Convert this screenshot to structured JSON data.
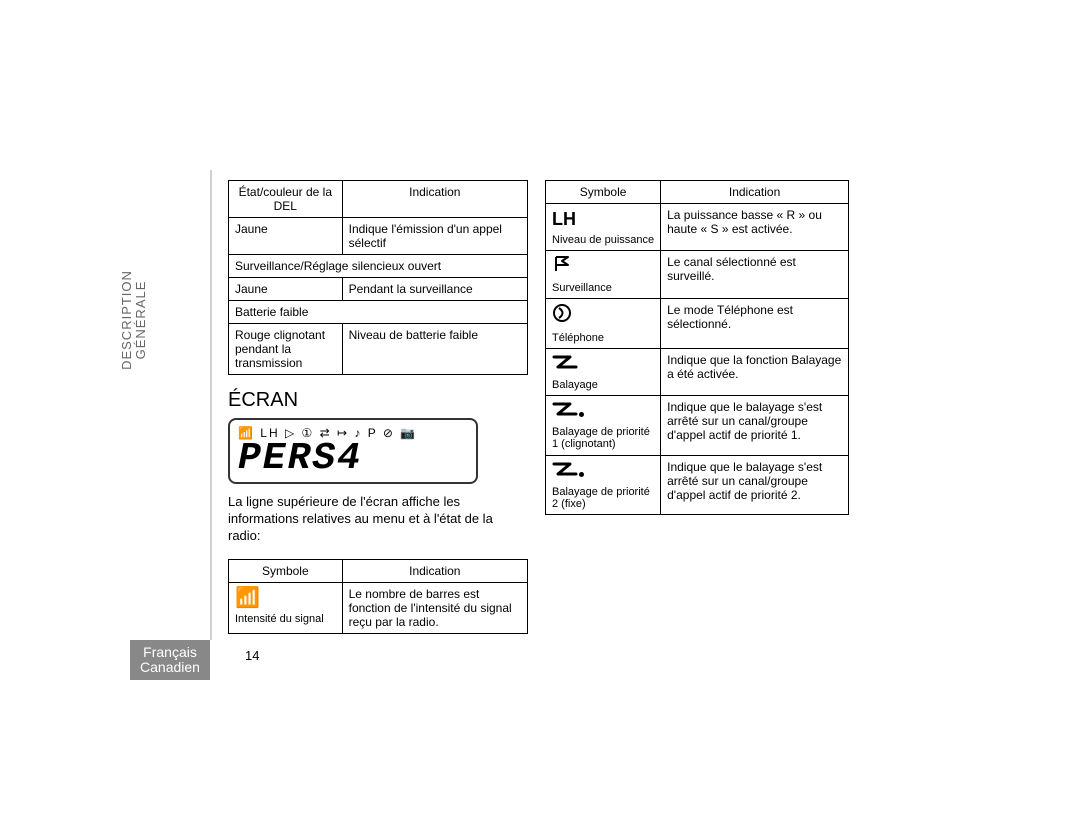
{
  "sidebar": {
    "line1": "DESCRIPTION",
    "line2": "GÉNÉRALE"
  },
  "language": {
    "line1": "Français",
    "line2": "Canadien"
  },
  "pageNumber": "14",
  "table1": {
    "header": {
      "col1": "État/couleur de la DEL",
      "col2": "Indication"
    },
    "rows": [
      {
        "c1": "Jaune",
        "c2": "Indique l'émission d'un appel sélectif"
      },
      {
        "span": "Surveillance/Réglage silencieux ouvert"
      },
      {
        "c1": "Jaune",
        "c2": "Pendant la surveillance"
      },
      {
        "span": "Batterie faible"
      },
      {
        "c1": "Rouge clignotant pendant la transmission",
        "c2": "Niveau de batterie faible"
      }
    ]
  },
  "screenHeading": "ÉCRAN",
  "lcd": {
    "iconsRow": "📶 LH ▷ ① ⇄ ↦ ♪ P ⊘ 📷",
    "text": "PERS4"
  },
  "intro": "La ligne supérieure de l'écran affiche les informations relatives au menu et à l'état de la radio:",
  "table2": {
    "header": {
      "col1": "Symbole",
      "col2": "Indication"
    },
    "rows": [
      {
        "glyph": "📶",
        "label": "Intensité du signal",
        "indication": "Le nombre de barres est fonction de l'intensité du signal reçu par la radio."
      }
    ]
  },
  "table3": {
    "header": {
      "col1": "Symbole",
      "col2": "Indication"
    },
    "rows": [
      {
        "type": "lh",
        "label": "Niveau de puissance",
        "indication": "La puissance basse « R » ou haute « S » est activée."
      },
      {
        "type": "flag",
        "label": "Surveillance",
        "indication": "Le canal sélectionné est surveillé."
      },
      {
        "type": "circle-d",
        "label": "Téléphone",
        "indication": "Le mode Téléphone est sélectionné."
      },
      {
        "type": "z",
        "label": "Balayage",
        "indication": "Indique que la fonction Balayage a été activée."
      },
      {
        "type": "z-dot",
        "label": "Balayage de priorité 1 (clignotant)",
        "indication": "Indique que le balayage s'est arrêté sur un canal/groupe d'appel actif de priorité 1."
      },
      {
        "type": "z-dot",
        "label": "Balayage de priorité 2 (fixe)",
        "indication": "Indique que le balayage s'est arrêté sur un canal/groupe d'appel actif de priorité 2."
      }
    ]
  }
}
